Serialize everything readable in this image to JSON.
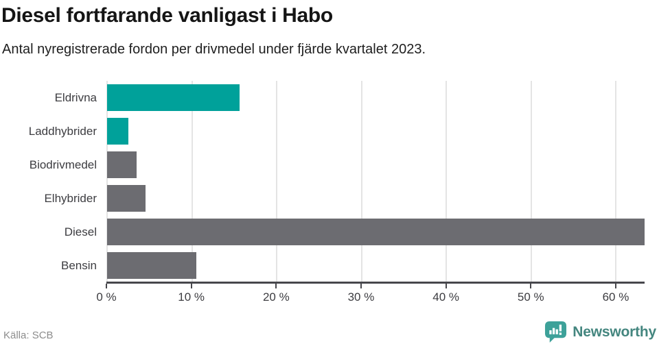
{
  "header": {
    "title": "Diesel fortfarande vanligast i Habo",
    "subtitle": "Antal nyregistrerade fordon per drivmedel under fjärde kvartalet 2023."
  },
  "chart_data": {
    "type": "bar",
    "orientation": "horizontal",
    "title": "Diesel fortfarande vanligast i Habo",
    "subtitle": "Antal nyregistrerade fordon per drivmedel under fjärde kvartalet 2023.",
    "categories": [
      "Eldrivna",
      "Laddhybrider",
      "Biodrivmedel",
      "Elhybrider",
      "Diesel",
      "Bensin"
    ],
    "values": [
      15.6,
      2.5,
      3.5,
      4.5,
      63.4,
      10.5
    ],
    "unit": "%",
    "bar_colors": [
      "#00a19a",
      "#00a19a",
      "#6c6c71",
      "#6c6c71",
      "#6c6c71",
      "#6c6c71"
    ],
    "xlabel": "",
    "ylabel": "",
    "xlim": [
      0,
      63.4
    ],
    "x_ticks": [
      0,
      10,
      20,
      30,
      40,
      50,
      60
    ],
    "x_tick_labels": [
      "0 %",
      "10 %",
      "20 %",
      "30 %",
      "40 %",
      "50 %",
      "60 %"
    ],
    "grid": "vertical-only",
    "legend": "none"
  },
  "colors": {
    "accent_teal": "#00a19a",
    "bar_gray": "#6c6c71",
    "gridline": "#e4e4e4",
    "axis": "#47474c",
    "logo_bubble": "#3da199",
    "logo_text": "#44867f"
  },
  "footer": {
    "source": "Källa: SCB",
    "brand": "Newsworthy"
  }
}
